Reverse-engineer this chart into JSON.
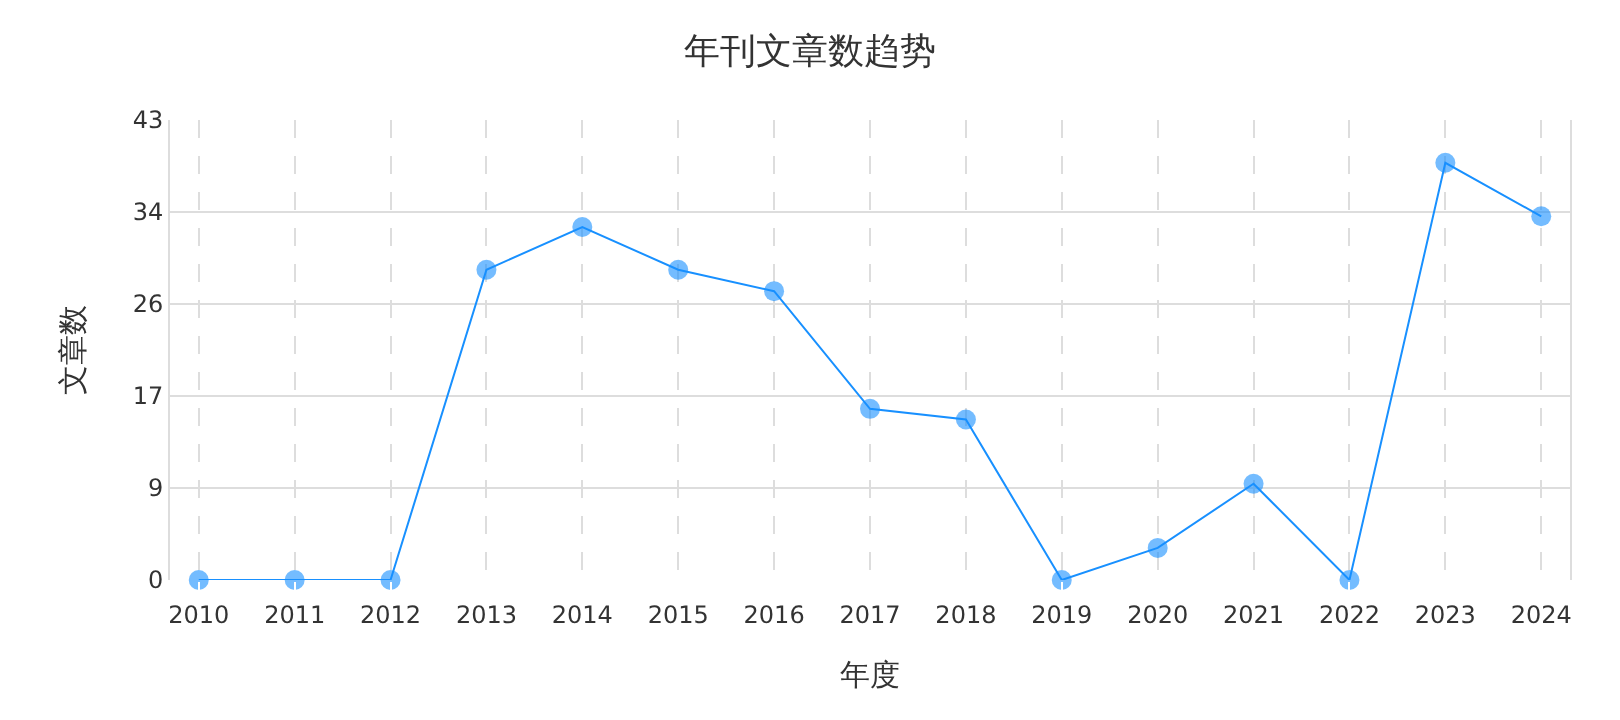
{
  "chart_data": {
    "type": "line",
    "title": "年刊文章数趋势",
    "xlabel": "年度",
    "ylabel": "文章数",
    "categories": [
      "2010",
      "2011",
      "2012",
      "2013",
      "2014",
      "2015",
      "2016",
      "2017",
      "2018",
      "2019",
      "2020",
      "2021",
      "2022",
      "2023",
      "2024"
    ],
    "series": [
      {
        "color": "#1890ff",
        "values": [
          0,
          0,
          0,
          29,
          33,
          29,
          27,
          16,
          15,
          0,
          3,
          9,
          0,
          39,
          34
        ]
      }
    ],
    "ylim": [
      0,
      43
    ],
    "yticks": [
      0,
      {
        "value": 8.6,
        "label": "9"
      },
      {
        "value": 17.2,
        "label": "17"
      },
      {
        "value": 25.8,
        "label": "26"
      },
      {
        "value": 34.4,
        "label": "34"
      },
      43
    ],
    "grid": true,
    "marker": "circle",
    "line_style": "solid"
  }
}
